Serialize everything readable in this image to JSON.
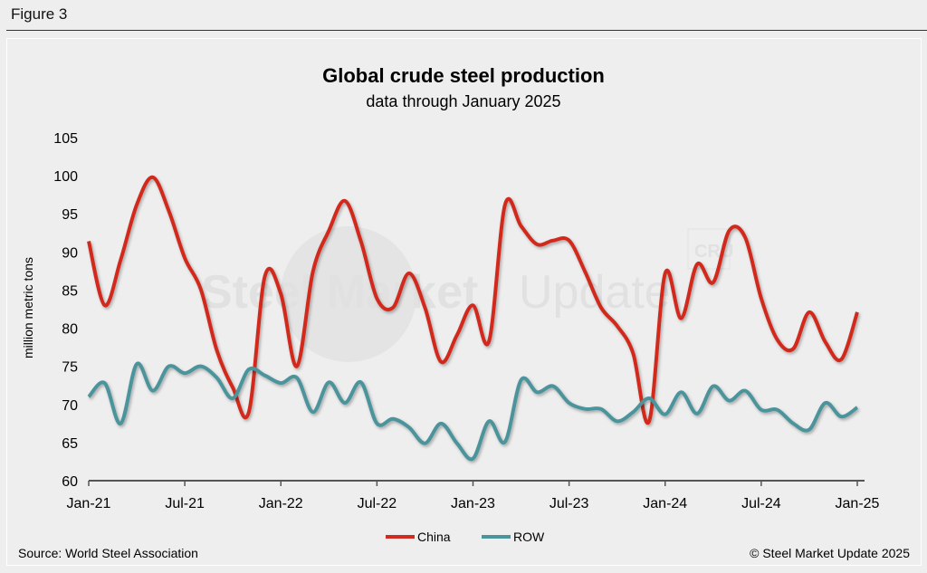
{
  "figure_label": "Figure 3",
  "source": "Source: World Steel Association",
  "copyright": "© Steel Market Update 2025",
  "watermark": {
    "brand_bold": "Steel Market",
    "brand_light": "Update",
    "badge": "CRU"
  },
  "colors": {
    "China": "#d12a1f",
    "ROW": "#4b949c",
    "axis": "#555555"
  },
  "chart_data": {
    "type": "line",
    "title": "Global crude steel production",
    "subtitle": "data through January 2025",
    "xlabel": "",
    "ylabel": "million metric tons",
    "ylim": [
      60,
      105
    ],
    "yticks": [
      60,
      65,
      70,
      75,
      80,
      85,
      90,
      95,
      100,
      105
    ],
    "x_start": "Jan-21",
    "x_end": "Jan-25",
    "xtick_labels": [
      "Jan-21",
      "Jul-21",
      "Jan-22",
      "Jul-22",
      "Jan-23",
      "Jul-23",
      "Jan-24",
      "Jul-24",
      "Jan-25"
    ],
    "xtick_every_months": 6,
    "legend_position": "bottom",
    "grid": false,
    "series": [
      {
        "name": "China",
        "values": [
          91.4,
          83.0,
          89.0,
          96.2,
          99.8,
          95.4,
          89.2,
          85.1,
          77.1,
          72.2,
          69.0,
          86.8,
          84.5,
          75.0,
          87.4,
          92.8,
          96.7,
          91.4,
          83.9,
          82.7,
          87.2,
          82.7,
          75.6,
          79.1,
          83.0,
          78.3,
          96.2,
          93.4,
          91.0,
          91.5,
          91.5,
          87.4,
          82.7,
          80.3,
          76.7,
          67.8,
          87.2,
          81.3,
          88.4,
          86.0,
          92.8,
          91.9,
          83.9,
          78.5,
          77.3,
          82.1,
          78.2,
          75.9,
          82.1
        ]
      },
      {
        "name": "ROW",
        "values": [
          71.0,
          72.8,
          67.5,
          75.3,
          71.8,
          75.0,
          74.1,
          75.0,
          73.5,
          70.8,
          74.6,
          73.8,
          72.8,
          73.5,
          69.0,
          72.9,
          70.2,
          72.9,
          67.5,
          68.1,
          67.0,
          64.9,
          67.5,
          64.9,
          62.9,
          67.8,
          65.1,
          73.2,
          71.6,
          72.4,
          70.2,
          69.4,
          69.4,
          67.8,
          69.0,
          70.8,
          68.7,
          71.6,
          68.8,
          72.4,
          70.5,
          71.8,
          69.3,
          69.3,
          67.5,
          66.7,
          70.2,
          68.4,
          69.6
        ]
      }
    ]
  }
}
